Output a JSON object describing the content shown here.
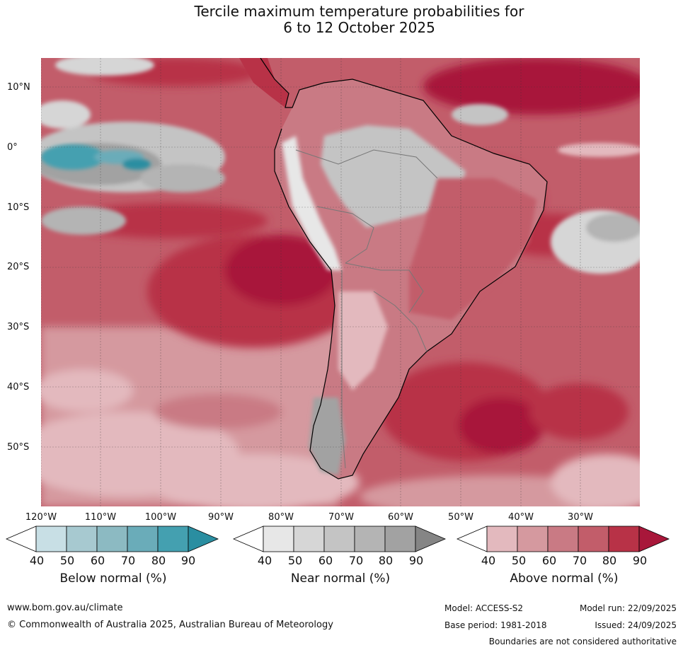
{
  "title": {
    "line1": "Tercile maximum temperature probabilities for",
    "line2": "6 to 12 October 2025"
  },
  "lat_labels": [
    "10°N",
    "0°",
    "10°S",
    "20°S",
    "30°S",
    "40°S",
    "50°S"
  ],
  "lon_labels": [
    "120°W",
    "110°W",
    "100°W",
    "90°W",
    "80°W",
    "70°W",
    "60°W",
    "50°W",
    "40°W",
    "30°W"
  ],
  "legend": {
    "ticks": [
      "40",
      "50",
      "60",
      "70",
      "80",
      "90"
    ],
    "below": {
      "label": "Below normal (%)",
      "colors": [
        "#ffffff",
        "#c8dfe5",
        "#a7c9d0",
        "#8cbac2",
        "#6aacb9",
        "#44a0b0",
        "#2a8ea1"
      ]
    },
    "near": {
      "label": "Near normal (%)",
      "colors": [
        "#ffffff",
        "#e7e7e7",
        "#d6d6d6",
        "#c4c4c4",
        "#b4b4b4",
        "#a2a2a2",
        "#858585"
      ]
    },
    "above": {
      "label": "Above normal (%)",
      "colors": [
        "#ffffff",
        "#e3b9be",
        "#d5999f",
        "#c97a84",
        "#c25d6a",
        "#b83247",
        "#a8173a"
      ]
    }
  },
  "footer": {
    "website": "www.bom.gov.au/climate",
    "copyright": "© Commonwealth of Australia 2025, Australian Bureau of Meteorology",
    "model": "Model: ACCESS-S2",
    "model_run": "Model run: 22/09/2025",
    "base_period": "Base period: 1981-2018",
    "issued": "Issued: 24/09/2025",
    "disclaimer": "Boundaries are not considered authoritative"
  }
}
